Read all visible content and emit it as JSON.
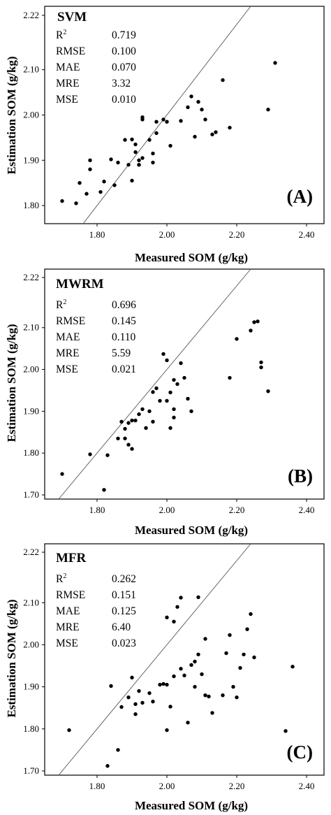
{
  "chart_data": [
    {
      "type": "scatter",
      "title": "SVM",
      "panel_label": "(A)",
      "xlabel": "Measured SOM (g/kg)",
      "ylabel": "Estimation SOM (g/kg)",
      "xlim": [
        1.65,
        2.45
      ],
      "ylim": [
        1.76,
        2.24
      ],
      "xticks": [
        "1.80",
        "2.00",
        "2.20",
        "2.40"
      ],
      "yticks": [
        "1.80",
        "1.90",
        "2.00",
        "2.10",
        "2.22"
      ],
      "reference_line": "1:1",
      "stats": [
        {
          "name": "R2",
          "value": "0.719"
        },
        {
          "name": "RMSE",
          "value": "0.100"
        },
        {
          "name": "MAE",
          "value": "0.070"
        },
        {
          "name": "MRE",
          "value": "3.32"
        },
        {
          "name": "MSE",
          "value": "0.010"
        }
      ],
      "points": [
        [
          1.7,
          1.81
        ],
        [
          1.74,
          1.805
        ],
        [
          1.75,
          1.85
        ],
        [
          1.77,
          1.826
        ],
        [
          1.78,
          1.88
        ],
        [
          1.78,
          1.9
        ],
        [
          1.81,
          1.83
        ],
        [
          1.82,
          1.853
        ],
        [
          1.84,
          1.902
        ],
        [
          1.85,
          1.845
        ],
        [
          1.86,
          1.895
        ],
        [
          1.88,
          1.945
        ],
        [
          1.89,
          1.89
        ],
        [
          1.9,
          1.855
        ],
        [
          1.9,
          1.946
        ],
        [
          1.91,
          1.935
        ],
        [
          1.91,
          1.918
        ],
        [
          1.92,
          1.89
        ],
        [
          1.92,
          1.9
        ],
        [
          1.92,
          1.89
        ],
        [
          1.93,
          1.905
        ],
        [
          1.93,
          1.99
        ],
        [
          1.93,
          1.995
        ],
        [
          1.95,
          1.945
        ],
        [
          1.96,
          1.895
        ],
        [
          1.96,
          1.915
        ],
        [
          1.97,
          1.96
        ],
        [
          1.97,
          1.985
        ],
        [
          1.99,
          1.99
        ],
        [
          2.0,
          1.985
        ],
        [
          2.01,
          1.932
        ],
        [
          2.04,
          1.987
        ],
        [
          2.06,
          2.017
        ],
        [
          2.07,
          2.041
        ],
        [
          2.08,
          1.952
        ],
        [
          2.09,
          2.029
        ],
        [
          2.1,
          2.012
        ],
        [
          2.11,
          1.99
        ],
        [
          2.13,
          1.957
        ],
        [
          2.14,
          1.962
        ],
        [
          2.16,
          2.077
        ],
        [
          2.18,
          1.972
        ],
        [
          2.29,
          2.012
        ],
        [
          2.31,
          2.115
        ]
      ]
    },
    {
      "type": "scatter",
      "title": "MWRM",
      "panel_label": "(B)",
      "xlabel": "Measured SOM (g/kg)",
      "ylabel": "Estimation SOM (g/kg)",
      "xlim": [
        1.65,
        2.45
      ],
      "ylim": [
        1.69,
        2.24
      ],
      "xticks": [
        "1.80",
        "2.00",
        "2.20",
        "2.40"
      ],
      "yticks": [
        "1.70",
        "1.80",
        "1.90",
        "2.00",
        "2.10",
        "2.22"
      ],
      "reference_line": "1:1",
      "stats": [
        {
          "name": "R2",
          "value": "0.696"
        },
        {
          "name": "RMSE",
          "value": "0.145"
        },
        {
          "name": "MAE",
          "value": "0.110"
        },
        {
          "name": "MRE",
          "value": "5.59"
        },
        {
          "name": "MSE",
          "value": "0.021"
        }
      ],
      "points": [
        [
          1.7,
          1.75
        ],
        [
          1.78,
          1.797
        ],
        [
          1.82,
          1.712
        ],
        [
          1.83,
          1.795
        ],
        [
          1.86,
          1.835
        ],
        [
          1.87,
          1.875
        ],
        [
          1.88,
          1.858
        ],
        [
          1.88,
          1.835
        ],
        [
          1.89,
          1.872
        ],
        [
          1.89,
          1.82
        ],
        [
          1.9,
          1.81
        ],
        [
          1.9,
          1.878
        ],
        [
          1.91,
          1.878
        ],
        [
          1.92,
          1.893
        ],
        [
          1.93,
          1.905
        ],
        [
          1.94,
          1.86
        ],
        [
          1.95,
          1.9
        ],
        [
          1.96,
          1.875
        ],
        [
          1.96,
          1.946
        ],
        [
          1.97,
          1.955
        ],
        [
          1.98,
          1.925
        ],
        [
          1.99,
          2.037
        ],
        [
          2.0,
          2.022
        ],
        [
          2.0,
          1.925
        ],
        [
          2.01,
          1.86
        ],
        [
          2.01,
          1.945
        ],
        [
          2.02,
          1.975
        ],
        [
          2.02,
          1.905
        ],
        [
          2.02,
          1.885
        ],
        [
          2.03,
          1.965
        ],
        [
          2.04,
          2.015
        ],
        [
          2.05,
          1.98
        ],
        [
          2.06,
          1.93
        ],
        [
          2.07,
          1.9
        ],
        [
          2.18,
          1.98
        ],
        [
          2.2,
          2.073
        ],
        [
          2.24,
          2.093
        ],
        [
          2.25,
          2.113
        ],
        [
          2.26,
          2.115
        ],
        [
          2.27,
          2.017
        ],
        [
          2.27,
          2.005
        ],
        [
          2.29,
          1.948
        ]
      ]
    },
    {
      "type": "scatter",
      "title": "MFR",
      "panel_label": "(C)",
      "xlabel": "Measured SOM (g/kg)",
      "ylabel": "Estimation SOM (g/kg)",
      "xlim": [
        1.65,
        2.45
      ],
      "ylim": [
        1.69,
        2.24
      ],
      "xticks": [
        "1.80",
        "2.00",
        "2.20",
        "2.40"
      ],
      "yticks": [
        "1.70",
        "1.80",
        "1.90",
        "2.00",
        "2.10",
        "2.22"
      ],
      "reference_line": "1:1",
      "stats": [
        {
          "name": "R2",
          "value": "0.262"
        },
        {
          "name": "RMSE",
          "value": "0.151"
        },
        {
          "name": "MAE",
          "value": "0.125"
        },
        {
          "name": "MRE",
          "value": "6.40"
        },
        {
          "name": "MSE",
          "value": "0.023"
        }
      ],
      "points": [
        [
          1.72,
          1.797
        ],
        [
          1.83,
          1.712
        ],
        [
          1.84,
          1.902
        ],
        [
          1.86,
          1.75
        ],
        [
          1.87,
          1.852
        ],
        [
          1.89,
          1.875
        ],
        [
          1.9,
          1.922
        ],
        [
          1.91,
          1.859
        ],
        [
          1.91,
          1.835
        ],
        [
          1.92,
          1.89
        ],
        [
          1.93,
          1.862
        ],
        [
          1.95,
          1.885
        ],
        [
          1.96,
          1.865
        ],
        [
          1.98,
          1.905
        ],
        [
          1.99,
          1.907
        ],
        [
          2.0,
          1.797
        ],
        [
          2.0,
          2.065
        ],
        [
          2.0,
          1.905
        ],
        [
          2.01,
          1.853
        ],
        [
          2.02,
          1.925
        ],
        [
          2.02,
          2.055
        ],
        [
          2.03,
          2.09
        ],
        [
          2.04,
          2.112
        ],
        [
          2.04,
          1.943
        ],
        [
          2.05,
          1.927
        ],
        [
          2.06,
          1.815
        ],
        [
          2.07,
          1.952
        ],
        [
          2.08,
          1.96
        ],
        [
          2.08,
          1.9
        ],
        [
          2.09,
          2.113
        ],
        [
          2.09,
          1.977
        ],
        [
          2.1,
          1.93
        ],
        [
          2.11,
          1.88
        ],
        [
          2.11,
          2.014
        ],
        [
          2.12,
          1.877
        ],
        [
          2.13,
          1.838
        ],
        [
          2.16,
          1.88
        ],
        [
          2.17,
          1.98
        ],
        [
          2.18,
          2.023
        ],
        [
          2.19,
          1.9
        ],
        [
          2.2,
          1.875
        ],
        [
          2.21,
          1.945
        ],
        [
          2.22,
          1.977
        ],
        [
          2.23,
          2.037
        ],
        [
          2.24,
          2.073
        ],
        [
          2.25,
          1.97
        ],
        [
          2.34,
          1.795
        ],
        [
          2.36,
          1.948
        ]
      ]
    }
  ]
}
